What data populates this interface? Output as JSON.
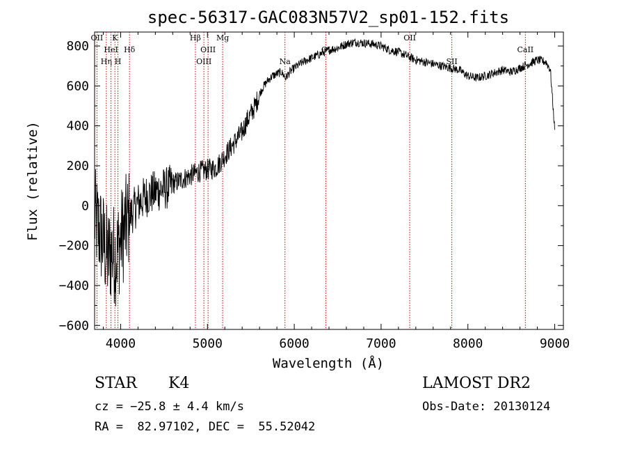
{
  "chart_data": {
    "type": "line",
    "title": "spec-56317-GAC083N57V2_sp01-152.fits",
    "xlabel": "Wavelength (Å)",
    "ylabel": "Flux (relative)",
    "xlim": [
      3700,
      9100
    ],
    "ylim": [
      -620,
      870
    ],
    "x_ticks": [
      4000,
      5000,
      6000,
      7000,
      8000,
      9000
    ],
    "y_ticks": [
      -600,
      -400,
      -200,
      0,
      200,
      400,
      600,
      800
    ],
    "grid": false,
    "series": [
      {
        "x": [
          3700,
          3750,
          3800,
          3850,
          3900,
          3950,
          4000,
          4050,
          4100,
          4150,
          4200,
          4250,
          4300,
          4350,
          4400,
          4450,
          4500,
          4550,
          4600,
          4650,
          4700,
          4750,
          4800,
          4850,
          4900,
          4950,
          5000,
          5050,
          5100,
          5150,
          5200,
          5250,
          5300,
          5350,
          5400,
          5450,
          5500,
          5550,
          5600,
          5650,
          5700,
          5750,
          5800,
          5850,
          5900,
          5950,
          6000,
          6100,
          6200,
          6300,
          6400,
          6500,
          6600,
          6700,
          6800,
          6900,
          7000,
          7100,
          7200,
          7300,
          7400,
          7500,
          7600,
          7700,
          7800,
          7900,
          8000,
          8100,
          8200,
          8300,
          8400,
          8500,
          8600,
          8700,
          8800,
          8900,
          8950,
          9000
        ],
        "y": [
          -60,
          -120,
          -180,
          -260,
          -230,
          -250,
          -170,
          -110,
          -60,
          -20,
          10,
          30,
          50,
          60,
          70,
          80,
          85,
          90,
          110,
          120,
          130,
          140,
          150,
          160,
          170,
          175,
          180,
          185,
          190,
          220,
          250,
          280,
          310,
          340,
          370,
          420,
          460,
          500,
          560,
          600,
          630,
          650,
          660,
          670,
          640,
          670,
          690,
          720,
          740,
          760,
          780,
          790,
          810,
          820,
          815,
          810,
          800,
          780,
          770,
          750,
          730,
          720,
          710,
          700,
          690,
          680,
          650,
          640,
          650,
          665,
          680,
          670,
          690,
          710,
          730,
          720,
          680,
          380
        ]
      }
    ],
    "line_markers": [
      {
        "label": "OII",
        "wavelength": 3727
      },
      {
        "label": "Hη",
        "wavelength": 3835
      },
      {
        "label": "HeI",
        "wavelength": 3889
      },
      {
        "label": "K",
        "wavelength": 3934
      },
      {
        "label": "H",
        "wavelength": 3969
      },
      {
        "label": "Hδ",
        "wavelength": 4102
      },
      {
        "label": "Hβ",
        "wavelength": 4861
      },
      {
        "label": "OIII",
        "wavelength": 4959
      },
      {
        "label": "OIII",
        "wavelength": 5007
      },
      {
        "label": "Mg",
        "wavelength": 5175
      },
      {
        "label": "Na",
        "wavelength": 5893
      },
      {
        "label": "OI",
        "wavelength": 6364
      },
      {
        "label": "OII",
        "wavelength": 7330
      },
      {
        "label": "SII",
        "wavelength": 7815
      },
      {
        "label": "CaII",
        "wavelength": 8662
      }
    ],
    "marker_line_color": "#cc0000",
    "line_color": "#000000"
  },
  "info": {
    "class_label": "STAR",
    "subclass_label": "K4",
    "survey_label": "LAMOST DR2",
    "cz_text": "cz = −25.8 ± 4.4 km/s",
    "obs_date_text": "Obs-Date: 20130124",
    "coords_text": "RA =  82.97102, DEC =  55.52042"
  }
}
